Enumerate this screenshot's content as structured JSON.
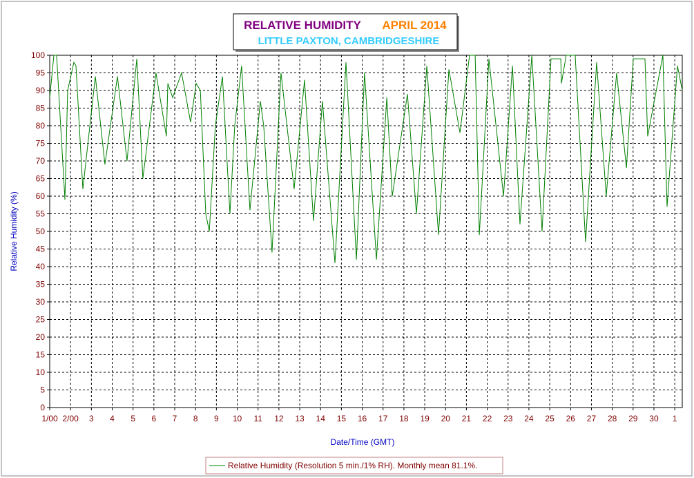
{
  "chart_data": {
    "type": "line",
    "title": "RELATIVE HUMIDITY",
    "period": "APRIL 2014",
    "subtitle": "LITTLE PAXTON, CAMBRIDGESHIRE",
    "xlabel": "Date/Time (GMT)",
    "ylabel": "Relative Humidity (%)",
    "xlim": [
      1,
      31.36
    ],
    "ylim": [
      0,
      100
    ],
    "xticks": [
      {
        "value": 1,
        "label": "1/00"
      },
      {
        "value": 2,
        "label": "2/00"
      },
      3,
      4,
      5,
      6,
      7,
      8,
      9,
      10,
      11,
      12,
      13,
      14,
      15,
      16,
      17,
      18,
      19,
      20,
      21,
      22,
      23,
      24,
      25,
      26,
      27,
      28,
      29,
      30,
      {
        "value": 31,
        "label": "1"
      }
    ],
    "yticks": [
      0,
      5,
      10,
      15,
      20,
      25,
      30,
      35,
      40,
      45,
      50,
      55,
      60,
      65,
      70,
      75,
      80,
      85,
      90,
      95,
      100
    ],
    "grid": true,
    "x": [
      1.0,
      1.2,
      1.33,
      1.73,
      1.86,
      2.16,
      2.26,
      2.59,
      3.19,
      3.65,
      4.25,
      4.71,
      5.18,
      5.47,
      6.1,
      6.6,
      6.67,
      6.9,
      7.33,
      7.76,
      8.03,
      8.23,
      8.49,
      8.66,
      8.95,
      9.29,
      9.65,
      9.88,
      10.21,
      10.61,
      11.11,
      11.27,
      11.67,
      12.1,
      12.73,
      13.23,
      13.66,
      14.09,
      14.69,
      15.22,
      15.72,
      16.11,
      16.68,
      17.18,
      17.44,
      18.17,
      18.6,
      19.1,
      19.66,
      20.16,
      20.69,
      21.15,
      21.42,
      21.62,
      22.08,
      22.78,
      23.21,
      23.57,
      24.14,
      24.63,
      25.06,
      25.53,
      25.56,
      25.79,
      26.22,
      26.72,
      27.25,
      27.71,
      28.21,
      28.68,
      29.01,
      29.57,
      29.7,
      30.43,
      30.63,
      31.13,
      31.36
    ],
    "series": [
      {
        "name": "Relative Humidity (Resolution 5 min./1% RH). Monthly mean 81.1%.",
        "color": "#008000",
        "values": [
          88,
          100,
          100,
          59,
          90,
          98,
          97,
          62,
          94,
          69,
          94,
          70,
          99,
          65,
          95,
          77,
          92,
          88,
          95,
          81,
          92,
          90,
          55,
          50,
          80,
          94,
          55,
          80,
          97,
          56,
          87,
          80,
          44,
          95,
          62,
          93,
          53,
          87,
          41,
          98,
          42,
          95,
          42,
          88,
          60,
          89,
          55,
          97,
          49,
          96,
          78,
          100,
          100,
          49,
          99,
          60,
          97,
          52,
          100,
          50,
          99,
          99,
          92,
          100,
          100,
          47,
          98,
          60,
          95,
          68,
          99,
          99,
          77,
          100,
          57,
          97,
          90
        ]
      }
    ]
  }
}
